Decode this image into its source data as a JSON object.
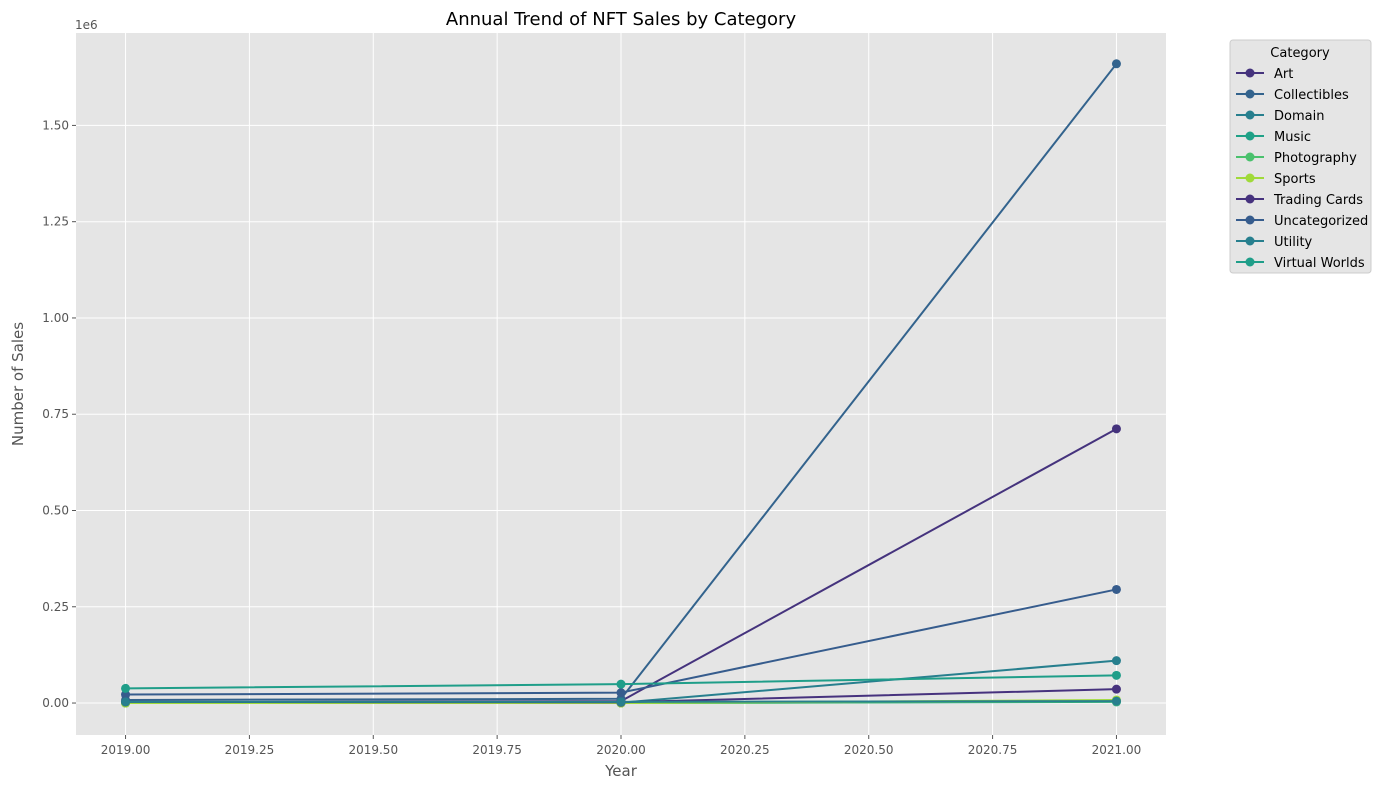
{
  "chart_data": {
    "type": "line",
    "title": "Annual Trend of NFT Sales by Category",
    "xlabel": "Year",
    "ylabel": "Number of Sales",
    "y_offset_label": "1e6",
    "x": [
      2019,
      2020,
      2021
    ],
    "xlim": [
      2018.9,
      2021.1
    ],
    "ylim": [
      -0.083,
      1.74
    ],
    "x_ticks": [
      2019.0,
      2019.25,
      2019.5,
      2019.75,
      2020.0,
      2020.25,
      2020.5,
      2020.75,
      2021.0
    ],
    "x_tick_labels": [
      "2019.00",
      "2019.25",
      "2019.50",
      "2019.75",
      "2020.00",
      "2020.25",
      "2020.50",
      "2020.75",
      "2021.00"
    ],
    "y_ticks": [
      0,
      0.25,
      0.5,
      0.75,
      1.0,
      1.25,
      1.5
    ],
    "y_tick_labels": [
      "0.00",
      "0.25",
      "0.50",
      "0.75",
      "1.00",
      "1.25",
      "1.50"
    ],
    "grid": true,
    "legend_title": "Category",
    "legend_position": "outside-top-right",
    "series": [
      {
        "name": "Art",
        "color": "#45337d",
        "values": [
          0.002,
          0.005,
          0.712
        ]
      },
      {
        "name": "Collectibles",
        "color": "#33638d",
        "values": [
          0.008,
          0.011,
          1.66
        ]
      },
      {
        "name": "Domain",
        "color": "#277f8e",
        "values": [
          0.001,
          0.001,
          0.11
        ]
      },
      {
        "name": "Music",
        "color": "#1fa187",
        "values": [
          0.0,
          0.0,
          0.003
        ]
      },
      {
        "name": "Photography",
        "color": "#4ac16d",
        "values": [
          0.0,
          0.0,
          0.004
        ]
      },
      {
        "name": "Sports",
        "color": "#a0da39",
        "values": [
          0.0,
          0.0,
          0.008
        ]
      },
      {
        "name": "Trading Cards",
        "color": "#46327e",
        "values": [
          0.003,
          0.002,
          0.036
        ]
      },
      {
        "name": "Uncategorized",
        "color": "#365c8d",
        "values": [
          0.022,
          0.027,
          0.295
        ]
      },
      {
        "name": "Utility",
        "color": "#277f8e",
        "values": [
          0.003,
          0.003,
          0.005
        ]
      },
      {
        "name": "Virtual Worlds",
        "color": "#1f9e89",
        "values": [
          0.038,
          0.049,
          0.072
        ]
      }
    ]
  }
}
